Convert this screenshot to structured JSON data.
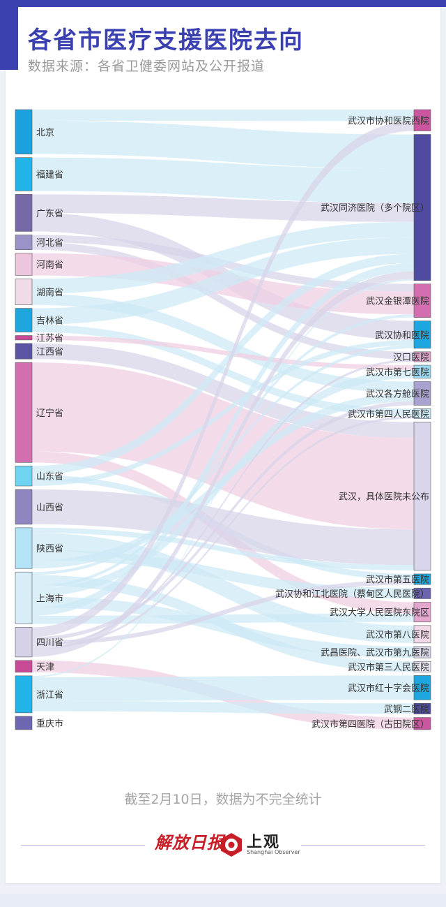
{
  "title": "各省市医疗支援医院去向",
  "subtitle": "数据来源：各省卫健委网站及公开报道",
  "footnote": "截至2月10日，数据为不完全统计",
  "logos": {
    "jiefang": "解放日报",
    "shangguan": "上观",
    "shangguan_en": "Shanghai Observer"
  },
  "colors": {
    "accent": "#3a40b0",
    "link": "#cde9f6",
    "text": "#333333"
  },
  "chart_data": {
    "type": "sankey",
    "title": "各省市医疗支援医院去向",
    "sources": [
      {
        "name": "北京",
        "value": 6,
        "color": "#1ba1dd"
      },
      {
        "name": "福建省",
        "value": 4.5,
        "color": "#22b3e8"
      },
      {
        "name": "广东省",
        "value": 5,
        "color": "#7768a8"
      },
      {
        "name": "河北省",
        "value": 2,
        "color": "#9a93c7"
      },
      {
        "name": "河南省",
        "value": 3,
        "color": "#edc5dc"
      },
      {
        "name": "湖南省",
        "value": 3.5,
        "color": "#f0dce8"
      },
      {
        "name": "吉林省",
        "value": 3.2,
        "color": "#1ea6df"
      },
      {
        "name": "江苏省",
        "value": 0.6,
        "color": "#c84a96"
      },
      {
        "name": "江西省",
        "value": 2.1,
        "color": "#5b53a3"
      },
      {
        "name": "辽宁省",
        "value": 13.5,
        "color": "#d36eb0"
      },
      {
        "name": "山东省",
        "value": 2.7,
        "color": "#6fd3f2"
      },
      {
        "name": "山西省",
        "value": 4.7,
        "color": "#8f86c0"
      },
      {
        "name": "陕西省",
        "value": 5.5,
        "color": "#b2e3f7"
      },
      {
        "name": "上海市",
        "value": 7,
        "color": "#d7eef9"
      },
      {
        "name": "四川省",
        "value": 4,
        "color": "#d6d1e9"
      },
      {
        "name": "天津",
        "value": 1.6,
        "color": "#c84a96"
      },
      {
        "name": "浙江省",
        "value": 5,
        "color": "#22b3e8"
      },
      {
        "name": "重庆市",
        "value": 1.8,
        "color": "#6d67b2"
      }
    ],
    "targets": [
      {
        "name": "武汉市协和医院西院",
        "value": 2.8,
        "color": "#c9569f"
      },
      {
        "name": "武汉同济医院（多个院区）",
        "value": 19.2,
        "color": "#4e4ba0"
      },
      {
        "name": "武汉金银潭医院",
        "value": 4.4,
        "color": "#d36eb0"
      },
      {
        "name": "武汉协和医院",
        "value": 3.6,
        "color": "#1ea6df"
      },
      {
        "name": "汉口医院",
        "value": 1.3,
        "color": "#e3a4cd"
      },
      {
        "name": "武汉市第七医院",
        "value": 1.7,
        "color": "#9ad9f2"
      },
      {
        "name": "武汉各方舱医院",
        "value": 3.1,
        "color": "#a9a1cf"
      },
      {
        "name": "武汉市第四人民医院",
        "value": 1.3,
        "color": "#c9ecf8"
      },
      {
        "name": "武汉，具体医院未公布",
        "value": 19.5,
        "color": "#d9d6ec"
      },
      {
        "name": "武汉市第五医院",
        "value": 1.4,
        "color": "#1ea6df"
      },
      {
        "name": "武汉协和江北医院（蔡甸区人民医院）",
        "value": 1.4,
        "color": "#6a63ae"
      },
      {
        "name": "武汉大学人民医院东院区",
        "value": 2.6,
        "color": "#e2a6cf"
      },
      {
        "name": "武汉市第八医院",
        "value": 2.3,
        "color": "#f1d9e8"
      },
      {
        "name": "武昌医院、武汉市第九医院",
        "value": 1.5,
        "color": "#dcd8ec"
      },
      {
        "name": "武汉市第三人民医院",
        "value": 1.4,
        "color": "#e9e6f3"
      },
      {
        "name": "武汉市红十字会医院",
        "value": 3.2,
        "color": "#1ea6df"
      },
      {
        "name": "武钢二医院",
        "value": 1.4,
        "color": "#4e4ba0"
      },
      {
        "name": "武汉市第四医院（古田院区）",
        "value": 1.6,
        "color": "#c9569f"
      }
    ],
    "links": [
      [
        "北京",
        "武汉市协和医院西院",
        1.5
      ],
      [
        "北京",
        "武汉同济医院（多个院区）",
        4.5
      ],
      [
        "福建省",
        "武汉同济医院（多个院区）",
        4.5
      ],
      [
        "广东省",
        "武汉同济医院（多个院区）",
        2.5
      ],
      [
        "广东省",
        "武汉协和医院",
        2.5
      ],
      [
        "河北省",
        "武汉金银潭医院",
        1
      ],
      [
        "河北省",
        "汉口医院",
        1
      ],
      [
        "河南省",
        "武汉金银潭医院",
        3
      ],
      [
        "湖南省",
        "武汉同济医院（多个院区）",
        2
      ],
      [
        "湖南省",
        "武汉各方舱医院",
        1.5
      ],
      [
        "吉林省",
        "武汉同济医院（多个院区）",
        2.2
      ],
      [
        "吉林省",
        "武汉市第四人民医院",
        1
      ],
      [
        "江苏省",
        "武汉市第七医院",
        0.6
      ],
      [
        "江西省",
        "武汉，具体医院未公布",
        2.1
      ],
      [
        "辽宁省",
        "武汉，具体医院未公布",
        12
      ],
      [
        "辽宁省",
        "武汉大学人民医院东院区",
        1.5
      ],
      [
        "山东省",
        "武汉同济医院（多个院区）",
        1.2
      ],
      [
        "山东省",
        "武汉市第五医院",
        0.8
      ],
      [
        "山东省",
        "武汉协和医院",
        0.7
      ],
      [
        "山西省",
        "武汉，具体医院未公布",
        4.7
      ],
      [
        "陕西省",
        "武汉，具体医院未公布",
        0.7
      ],
      [
        "陕西省",
        "武汉市第八医院",
        2.3
      ],
      [
        "陕西省",
        "武汉协和江北医院（蔡甸区人民医院）",
        1.4
      ],
      [
        "陕西省",
        "武汉各方舱医院",
        1.1
      ],
      [
        "上海市",
        "武汉协和医院",
        0.4
      ],
      [
        "上海市",
        "武汉，具体医院未公布",
        0
      ],
      [
        "上海市",
        "武汉市第三人民医院",
        1.4
      ],
      [
        "上海市",
        "武汉金银潭医院",
        0.4
      ],
      [
        "上海市",
        "武汉市第七医院",
        1.1
      ],
      [
        "上海市",
        "武昌医院、武汉市第九医院",
        1.5
      ],
      [
        "上海市",
        "武汉同济医院（多个院区）",
        1.1
      ],
      [
        "上海市",
        "武汉大学人民医院东院区",
        1.1
      ],
      [
        "四川省",
        "武汉市协和医院西院",
        1.3
      ],
      [
        "四川省",
        "武汉各方舱医院",
        0.5
      ],
      [
        "四川省",
        "武汉市第五医院",
        0.6
      ],
      [
        "四川省",
        "汉口医院",
        0.3
      ],
      [
        "四川省",
        "武汉市第四人民医院",
        0.3
      ],
      [
        "四川省",
        "武汉同济医院（多个院区）",
        1
      ],
      [
        "天津",
        "武汉市第四医院（古田院区）",
        1.6
      ],
      [
        "浙江省",
        "武汉同济医院（多个院区）",
        0.2
      ],
      [
        "浙江省",
        "武汉市红十字会医院",
        3.2
      ],
      [
        "浙江省",
        "武汉金银潭医院",
        0
      ],
      [
        "浙江省",
        "武钢二医院",
        1.4
      ],
      [
        "浙江省",
        "武汉市第五医院",
        0
      ],
      [
        "重庆市",
        "武汉，具体医院未公布",
        0
      ],
      [
        "重庆市",
        "武汉同济医院（多个院区）",
        0
      ],
      [
        "重庆市",
        "武汉协和医院",
        0
      ],
      [
        "重庆市",
        "武汉市第五医院",
        0
      ],
      [
        "重庆市",
        "武汉各方舱医院",
        0
      ]
    ]
  }
}
